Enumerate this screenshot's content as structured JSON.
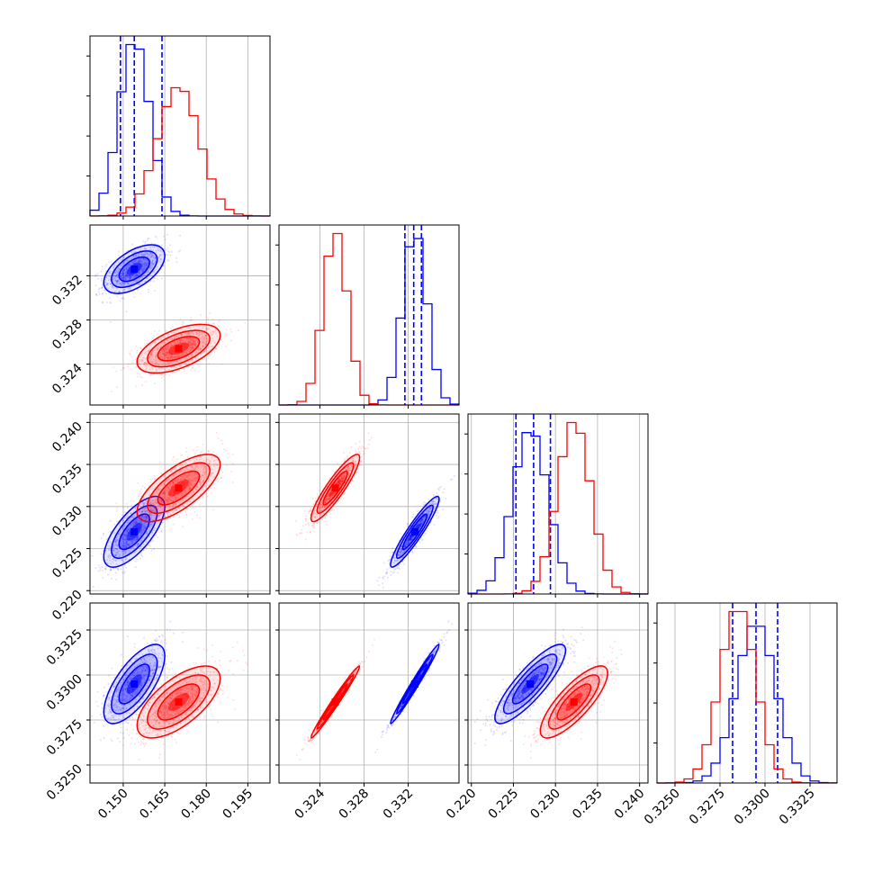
{
  "chart_data": {
    "type": "corner",
    "title": "",
    "parameters": [
      {
        "label": "",
        "range": [
          0.138,
          0.203
        ],
        "ticks": [
          "0.150",
          "0.165",
          "0.180",
          "0.195"
        ],
        "tick_values": [
          0.15,
          0.165,
          0.18,
          0.195
        ]
      },
      {
        "label": "",
        "range": [
          0.3203,
          0.3366
        ],
        "ticks": [
          "0.324",
          "0.328",
          "0.332"
        ],
        "tick_values": [
          0.324,
          0.328,
          0.332
        ]
      },
      {
        "label": "",
        "range": [
          0.2196,
          0.241
        ],
        "ticks": [
          "0.220",
          "0.225",
          "0.230",
          "0.235",
          "0.240"
        ],
        "tick_values": [
          0.22,
          0.225,
          0.23,
          0.235,
          0.24
        ]
      },
      {
        "label": "",
        "range": [
          0.324,
          0.334
        ],
        "ticks": [
          "0.3250",
          "0.3275",
          "0.3300",
          "0.3325"
        ],
        "tick_values": [
          0.325,
          0.3275,
          0.33,
          0.3325
        ]
      }
    ],
    "series": [
      {
        "color": "#0000ff",
        "mean": [
          0.154,
          0.3326,
          0.227,
          0.3295
        ],
        "sd": [
          0.0055,
          0.0011,
          0.0021,
          0.0011
        ],
        "quantiles": [
          [
            0.149,
            0.154,
            0.164
          ],
          [
            0.3317,
            0.3325,
            0.3332
          ],
          [
            0.2253,
            0.2274,
            0.2294
          ],
          [
            0.3282,
            0.3295,
            0.3307
          ]
        ]
      },
      {
        "color": "#ff0000",
        "mean": [
          0.17,
          0.3254,
          0.2322,
          0.3285
        ],
        "sd": [
          0.0075,
          0.0011,
          0.002,
          0.001
        ],
        "quantiles": []
      }
    ],
    "correlation": [
      [
        [
          0,
          1,
          0.55
        ],
        [
          0,
          2,
          0.7
        ],
        [
          0,
          3,
          0.7
        ],
        [
          1,
          2,
          0.93
        ],
        [
          1,
          3,
          0.985
        ],
        [
          2,
          3,
          0.85
        ]
      ],
      [
        [
          0,
          1,
          0.55
        ],
        [
          0,
          2,
          0.7
        ],
        [
          0,
          3,
          0.65
        ],
        [
          1,
          2,
          0.9
        ],
        [
          1,
          3,
          0.985
        ],
        [
          2,
          3,
          0.8
        ]
      ]
    ],
    "grid": true,
    "quantile_line_color": "#0000ff",
    "quantile_line_style": "dashed"
  }
}
